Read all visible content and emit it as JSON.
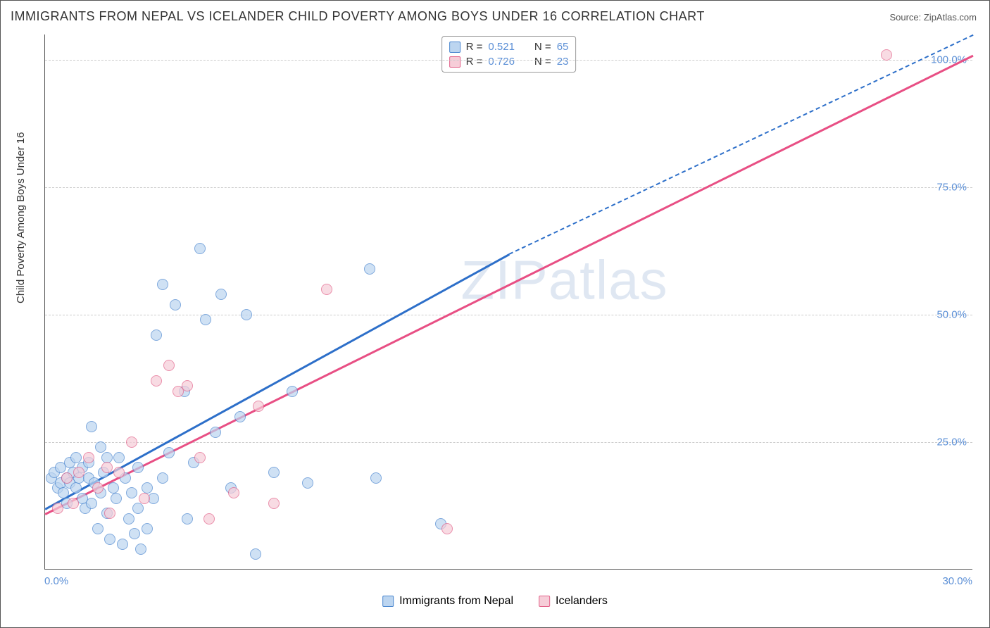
{
  "title": "IMMIGRANTS FROM NEPAL VS ICELANDER CHILD POVERTY AMONG BOYS UNDER 16 CORRELATION CHART",
  "source_prefix": "Source: ",
  "source_name": "ZipAtlas.com",
  "y_axis_title": "Child Poverty Among Boys Under 16",
  "watermark": "ZIPatlas",
  "chart": {
    "type": "scatter",
    "background_color": "#ffffff",
    "grid_color": "#cccccc",
    "xlim": [
      0,
      30
    ],
    "ylim": [
      0,
      105
    ],
    "x_ticks": [
      {
        "v": 0,
        "label": "0.0%"
      },
      {
        "v": 30,
        "label": "30.0%"
      }
    ],
    "y_ticks": [
      {
        "v": 25,
        "label": "25.0%"
      },
      {
        "v": 50,
        "label": "50.0%"
      },
      {
        "v": 75,
        "label": "75.0%"
      },
      {
        "v": 100,
        "label": "100.0%"
      }
    ],
    "marker_size": 16,
    "marker_opacity": 0.7,
    "line_width": 2.5,
    "series": [
      {
        "name": "Immigrants from Nepal",
        "fill": "#bcd5f0",
        "stroke": "#4a86cf",
        "trend_color": "#2d6fc9",
        "R": "0.521",
        "N": "65",
        "trend": {
          "x1": 0,
          "y1": 12,
          "x2": 15,
          "y2": 62,
          "x2_ext": 30,
          "y2_ext": 112
        },
        "points": [
          [
            0.2,
            18
          ],
          [
            0.3,
            19
          ],
          [
            0.4,
            16
          ],
          [
            0.5,
            20
          ],
          [
            0.5,
            17
          ],
          [
            0.6,
            15
          ],
          [
            0.7,
            18
          ],
          [
            0.7,
            13
          ],
          [
            0.8,
            21
          ],
          [
            0.8,
            17
          ],
          [
            0.9,
            19
          ],
          [
            1.0,
            22
          ],
          [
            1.0,
            16
          ],
          [
            1.1,
            18
          ],
          [
            1.2,
            14
          ],
          [
            1.2,
            20
          ],
          [
            1.3,
            12
          ],
          [
            1.4,
            18
          ],
          [
            1.4,
            21
          ],
          [
            1.5,
            28
          ],
          [
            1.5,
            13
          ],
          [
            1.6,
            17
          ],
          [
            1.7,
            8
          ],
          [
            1.8,
            24
          ],
          [
            1.8,
            15
          ],
          [
            1.9,
            19
          ],
          [
            2.0,
            11
          ],
          [
            2.0,
            22
          ],
          [
            2.1,
            6
          ],
          [
            2.2,
            16
          ],
          [
            2.3,
            14
          ],
          [
            2.4,
            22
          ],
          [
            2.5,
            5
          ],
          [
            2.6,
            18
          ],
          [
            2.7,
            10
          ],
          [
            2.8,
            15
          ],
          [
            2.9,
            7
          ],
          [
            3.0,
            20
          ],
          [
            3.0,
            12
          ],
          [
            3.1,
            4
          ],
          [
            3.3,
            16
          ],
          [
            3.3,
            8
          ],
          [
            3.5,
            14
          ],
          [
            3.6,
            46
          ],
          [
            3.8,
            18
          ],
          [
            3.8,
            56
          ],
          [
            4.0,
            23
          ],
          [
            4.2,
            52
          ],
          [
            4.5,
            35
          ],
          [
            4.6,
            10
          ],
          [
            4.8,
            21
          ],
          [
            5.0,
            63
          ],
          [
            5.2,
            49
          ],
          [
            5.5,
            27
          ],
          [
            5.7,
            54
          ],
          [
            6.0,
            16
          ],
          [
            6.3,
            30
          ],
          [
            6.5,
            50
          ],
          [
            6.8,
            3
          ],
          [
            7.4,
            19
          ],
          [
            8.0,
            35
          ],
          [
            8.5,
            17
          ],
          [
            10.5,
            59
          ],
          [
            10.7,
            18
          ],
          [
            12.8,
            9
          ]
        ]
      },
      {
        "name": "Icelanders",
        "fill": "#f6cdd8",
        "stroke": "#e26088",
        "trend_color": "#e84f84",
        "R": "0.726",
        "N": "23",
        "trend": {
          "x1": 0,
          "y1": 11,
          "x2": 30,
          "y2": 101
        },
        "points": [
          [
            0.4,
            12
          ],
          [
            0.7,
            18
          ],
          [
            0.9,
            13
          ],
          [
            1.1,
            19
          ],
          [
            1.4,
            22
          ],
          [
            1.7,
            16
          ],
          [
            2.0,
            20
          ],
          [
            2.1,
            11
          ],
          [
            2.4,
            19
          ],
          [
            2.8,
            25
          ],
          [
            3.2,
            14
          ],
          [
            3.6,
            37
          ],
          [
            4.0,
            40
          ],
          [
            4.3,
            35
          ],
          [
            4.6,
            36
          ],
          [
            5.0,
            22
          ],
          [
            5.3,
            10
          ],
          [
            6.1,
            15
          ],
          [
            6.9,
            32
          ],
          [
            7.4,
            13
          ],
          [
            9.1,
            55
          ],
          [
            13.0,
            8
          ],
          [
            27.2,
            101
          ]
        ]
      }
    ]
  },
  "legend": {
    "r_label": "R  = ",
    "n_label": "N  = "
  }
}
